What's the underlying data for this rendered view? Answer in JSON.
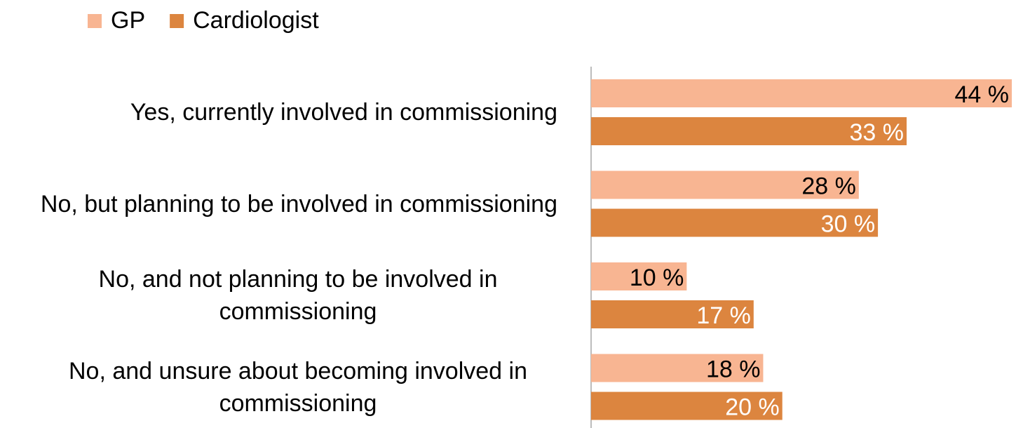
{
  "chart_data": {
    "type": "bar",
    "orientation": "horizontal",
    "categories": [
      "Yes, currently involved in commissioning",
      "No, but planning to be involved in commissioning",
      "No, and not planning to be involved in commissioning",
      "No, and unsure about becoming involved in commissioning"
    ],
    "series": [
      {
        "name": "GP",
        "color": "#f8b592",
        "label_color": "#000000",
        "values": [
          44,
          28,
          10,
          18
        ],
        "value_labels": [
          "44 %",
          "28 %",
          "10 %",
          "18 %"
        ]
      },
      {
        "name": "Cardiologist",
        "color": "#dc853f",
        "label_color": "#ffffff",
        "values": [
          33,
          30,
          17,
          20
        ],
        "value_labels": [
          "33 %",
          "30 %",
          "17 %",
          "20 %"
        ]
      }
    ],
    "xlim": [
      0,
      44
    ],
    "legend": "top-left"
  }
}
